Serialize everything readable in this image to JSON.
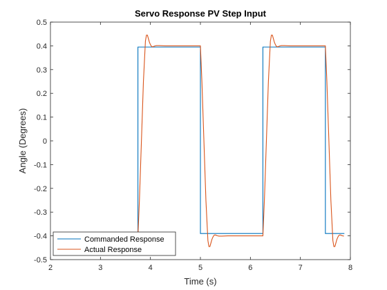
{
  "chart_data": {
    "type": "line",
    "title": "Servo Response PV Step Input",
    "xlabel": "Time (s)",
    "ylabel": "Angle (Degrees)",
    "xlim": [
      2,
      8
    ],
    "ylim": [
      -0.5,
      0.5
    ],
    "xticks": [
      2,
      3,
      4,
      5,
      6,
      7,
      8
    ],
    "xtick_labels": [
      "2",
      "3",
      "4",
      "5",
      "6",
      "7",
      "8"
    ],
    "yticks": [
      -0.5,
      -0.4,
      -0.3,
      -0.2,
      -0.1,
      0,
      0.1,
      0.2,
      0.3,
      0.4,
      0.5
    ],
    "ytick_labels": [
      "-0.5",
      "-0.4",
      "-0.3",
      "-0.2",
      "-0.1",
      "0",
      "0.1",
      "0.2",
      "0.3",
      "0.4",
      "0.5"
    ],
    "grid": false,
    "legend_position": "bottom-left",
    "series": [
      {
        "name": "Commanded Response",
        "color": "#0072bd",
        "x": [
          3.73,
          3.75,
          3.75,
          5.0,
          5.0,
          6.25,
          6.25,
          7.5,
          7.5,
          7.88
        ],
        "y": [
          -0.39,
          -0.39,
          0.395,
          0.395,
          -0.39,
          -0.39,
          0.395,
          0.395,
          -0.39,
          -0.39
        ]
      },
      {
        "name": "Actual Response",
        "color": "#d95319",
        "x": [
          3.75,
          3.78,
          3.82,
          3.86,
          3.9,
          3.92,
          3.94,
          3.96,
          3.98,
          4.0,
          4.02,
          4.04,
          4.06,
          4.08,
          4.12,
          4.18,
          4.3,
          5.0,
          5.03,
          5.07,
          5.11,
          5.15,
          5.17,
          5.19,
          5.21,
          5.23,
          5.25,
          5.27,
          5.29,
          5.31,
          5.33,
          5.37,
          5.43,
          5.55,
          6.25,
          6.28,
          6.32,
          6.36,
          6.4,
          6.42,
          6.44,
          6.46,
          6.48,
          6.5,
          6.52,
          6.54,
          6.56,
          6.58,
          6.62,
          6.68,
          6.8,
          7.5,
          7.53,
          7.57,
          7.61,
          7.65,
          7.67,
          7.69,
          7.71,
          7.73,
          7.75,
          7.77,
          7.79,
          7.81,
          7.83,
          7.87
        ],
        "y": [
          -0.4,
          -0.25,
          0.0,
          0.25,
          0.42,
          0.445,
          0.445,
          0.43,
          0.415,
          0.405,
          0.398,
          0.396,
          0.397,
          0.399,
          0.401,
          0.401,
          0.4,
          0.4,
          0.25,
          0.0,
          -0.25,
          -0.42,
          -0.445,
          -0.445,
          -0.43,
          -0.415,
          -0.405,
          -0.398,
          -0.396,
          -0.397,
          -0.399,
          -0.401,
          -0.401,
          -0.4,
          -0.4,
          -0.25,
          0.0,
          0.25,
          0.42,
          0.445,
          0.445,
          0.43,
          0.415,
          0.405,
          0.398,
          0.396,
          0.397,
          0.399,
          0.401,
          0.401,
          0.4,
          0.4,
          0.25,
          0.0,
          -0.25,
          -0.42,
          -0.445,
          -0.445,
          -0.43,
          -0.415,
          -0.405,
          -0.398,
          -0.396,
          -0.397,
          -0.399,
          -0.401
        ]
      }
    ]
  }
}
